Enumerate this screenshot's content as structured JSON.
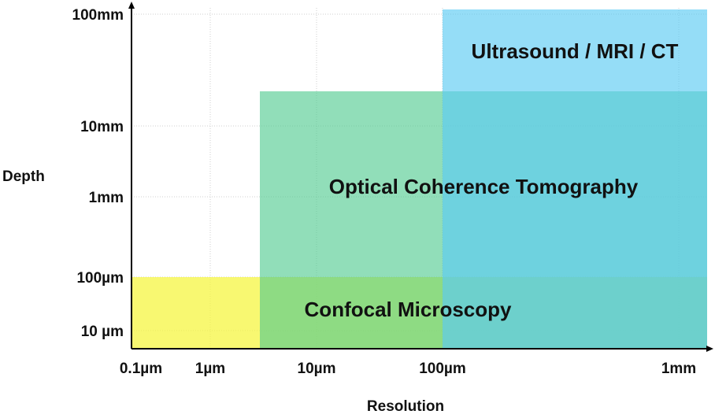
{
  "chart_data": {
    "type": "area",
    "title": "",
    "xlabel": "Resolution",
    "ylabel": "Depth",
    "x_scale": "log",
    "y_scale": "log",
    "x_ticks": [
      {
        "value": 0.1,
        "label": "0.1µm"
      },
      {
        "value": 1,
        "label": "1µm"
      },
      {
        "value": 10,
        "label": "10µm"
      },
      {
        "value": 100,
        "label": "100µm"
      },
      {
        "value": 1000,
        "label": "1mm"
      }
    ],
    "y_ticks": [
      {
        "value": 10,
        "label": "10 µm"
      },
      {
        "value": 100,
        "label": "100µm"
      },
      {
        "value": 1000,
        "label": "1mm"
      },
      {
        "value": 10000,
        "label": "10mm"
      },
      {
        "value": 100000,
        "label": "100mm"
      }
    ],
    "xlim": [
      0.1,
      1000
    ],
    "ylim": [
      10,
      100000
    ],
    "grid": true,
    "regions": [
      {
        "name": "Confocal Microscopy",
        "x_range": [
          0.1,
          1000
        ],
        "y_range": [
          10,
          100
        ],
        "color": "#f5f542",
        "opacity": 0.75
      },
      {
        "name": "Optical Coherence Tomography",
        "x_range": [
          3,
          1000
        ],
        "y_range": [
          10,
          20000
        ],
        "color": "#4ec98e",
        "opacity": 0.62
      },
      {
        "name": "Ultrasound / MRI / CT",
        "x_range": [
          100,
          1000
        ],
        "y_range": [
          10,
          100000
        ],
        "color": "#5ccbf2",
        "opacity": 0.65
      }
    ]
  }
}
